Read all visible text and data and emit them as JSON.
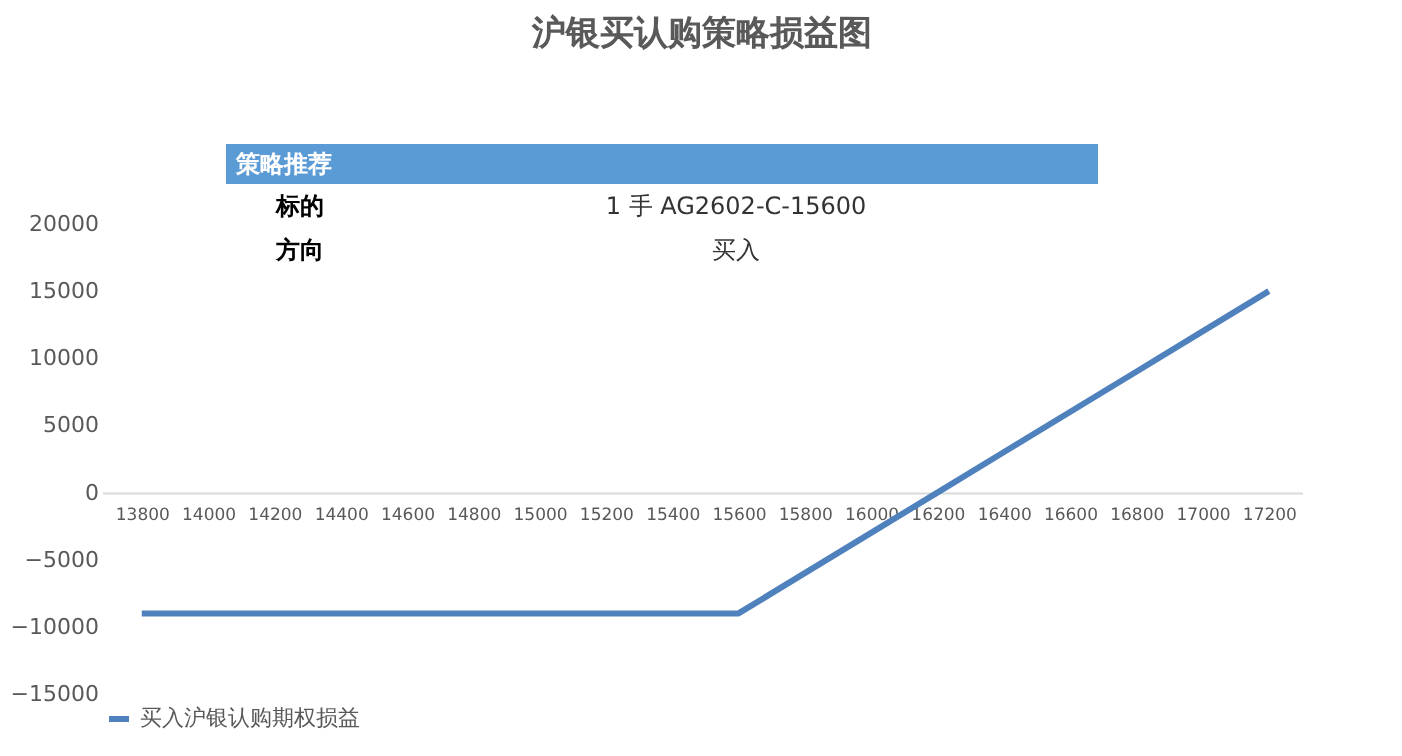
{
  "chart_data": {
    "type": "line",
    "title": "沪银买认购策略损益图",
    "categories": [
      "13800",
      "14000",
      "14200",
      "14400",
      "14600",
      "14800",
      "15000",
      "15200",
      "15400",
      "15600",
      "15800",
      "16000",
      "16200",
      "16400",
      "16600",
      "16800",
      "17000",
      "17200"
    ],
    "series": [
      {
        "name": "买入沪银认购期权损益",
        "color": "#4f81bd",
        "values": [
          -9000,
          -9000,
          -9000,
          -9000,
          -9000,
          -9000,
          -9000,
          -9000,
          -9000,
          -9000,
          -6000,
          -3000,
          0,
          3000,
          6000,
          9000,
          12000,
          15000
        ]
      }
    ],
    "ylim": [
      -15000,
      20000
    ],
    "yticks": [
      -15000,
      -10000,
      -5000,
      0,
      5000,
      10000,
      15000,
      20000
    ],
    "grid": false,
    "legend": "bottom",
    "marker": "none",
    "line_style": "solid",
    "annotations": [
      "策略推荐",
      "标的",
      "1 手 AG2602-C-15600",
      "方向",
      "买入"
    ]
  }
}
